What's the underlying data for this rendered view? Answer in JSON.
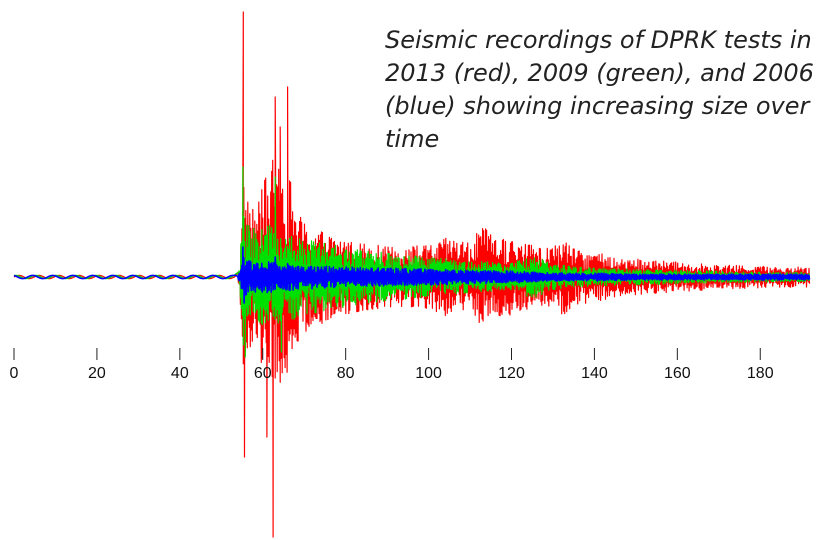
{
  "chart_data": {
    "type": "line",
    "title": "Seismic recordings of DPRK tests in 2013 (red), 2009 (green), and 2006 (blue) showing increasing size over time",
    "xlabel": "",
    "ylabel": "",
    "xlim": [
      0,
      192
    ],
    "x_ticks": [
      0,
      20,
      40,
      60,
      80,
      100,
      120,
      140,
      160,
      180
    ],
    "grid": false,
    "legend": "none",
    "series": [
      {
        "color": "#ff0000",
        "envelope": [
          [
            0,
            2
          ],
          [
            53,
            2
          ],
          [
            54.5,
            9
          ],
          [
            55,
            120
          ],
          [
            56,
            80
          ],
          [
            58,
            70
          ],
          [
            60,
            90
          ],
          [
            62,
            120
          ],
          [
            63,
            130
          ],
          [
            64,
            105
          ],
          [
            66,
            110
          ],
          [
            68,
            70
          ],
          [
            70,
            55
          ],
          [
            75,
            45
          ],
          [
            80,
            38
          ],
          [
            90,
            30
          ],
          [
            100,
            32
          ],
          [
            105,
            40
          ],
          [
            110,
            35
          ],
          [
            113,
            52
          ],
          [
            115,
            42
          ],
          [
            120,
            38
          ],
          [
            125,
            32
          ],
          [
            130,
            30
          ],
          [
            132,
            40
          ],
          [
            135,
            28
          ],
          [
            140,
            25
          ],
          [
            145,
            20
          ],
          [
            150,
            18
          ],
          [
            160,
            15
          ],
          [
            170,
            12
          ],
          [
            180,
            11
          ],
          [
            192,
            10
          ]
        ],
        "spikes": [
          [
            55.3,
            265
          ],
          [
            55.6,
            -180
          ],
          [
            62.5,
            -260
          ],
          [
            63.0,
            180
          ],
          [
            64.2,
            150
          ],
          [
            66.0,
            190
          ],
          [
            61.0,
            -160
          ]
        ]
      },
      {
        "color": "#00e000",
        "envelope": [
          [
            0,
            2
          ],
          [
            53,
            2
          ],
          [
            54.5,
            8
          ],
          [
            55,
            75
          ],
          [
            56,
            55
          ],
          [
            58,
            48
          ],
          [
            62,
            55
          ],
          [
            64,
            50
          ],
          [
            66,
            45
          ],
          [
            70,
            38
          ],
          [
            80,
            30
          ],
          [
            90,
            24
          ],
          [
            100,
            20
          ],
          [
            110,
            16
          ],
          [
            120,
            14
          ],
          [
            125,
            22
          ],
          [
            130,
            13
          ],
          [
            140,
            9
          ],
          [
            150,
            8
          ],
          [
            160,
            7
          ],
          [
            170,
            6
          ],
          [
            180,
            5
          ],
          [
            192,
            5
          ]
        ],
        "spikes": [
          [
            55.2,
            110
          ],
          [
            55.8,
            -80
          ],
          [
            63.0,
            100
          ],
          [
            64.5,
            -75
          ]
        ]
      },
      {
        "color": "#0000ff",
        "envelope": [
          [
            0,
            2
          ],
          [
            53,
            2
          ],
          [
            54.5,
            5
          ],
          [
            55,
            22
          ],
          [
            56,
            18
          ],
          [
            60,
            16
          ],
          [
            65,
            14
          ],
          [
            70,
            12
          ],
          [
            80,
            10
          ],
          [
            90,
            9
          ],
          [
            100,
            8
          ],
          [
            110,
            7
          ],
          [
            120,
            6
          ],
          [
            125,
            5
          ],
          [
            130,
            4
          ],
          [
            140,
            4
          ],
          [
            150,
            3
          ],
          [
            170,
            3
          ],
          [
            192,
            3
          ]
        ],
        "spikes": [
          [
            55.2,
            30
          ],
          [
            55.5,
            -26
          ],
          [
            63,
            20
          ]
        ]
      }
    ]
  }
}
